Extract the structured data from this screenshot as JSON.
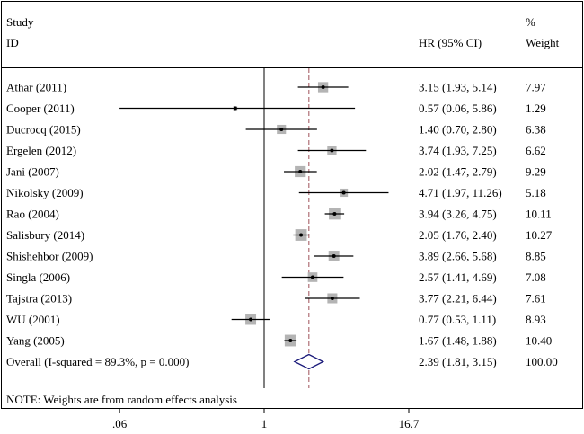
{
  "chart_data": {
    "type": "forest",
    "header": {
      "study_line1": "Study",
      "study_line2": "ID",
      "effect_label": "HR (95% CI)",
      "weight_line1": "%",
      "weight_line2": "Weight"
    },
    "studies": [
      {
        "label": "Athar  (2011)",
        "hr": 3.15,
        "lo": 1.93,
        "hi": 5.14,
        "ci_text": "3.15 (1.93, 5.14)",
        "weight": 7.97,
        "weight_text": "7.97"
      },
      {
        "label": "Cooper  (2011)",
        "hr": 0.57,
        "lo": 0.06,
        "hi": 5.86,
        "ci_text": "0.57 (0.06, 5.86)",
        "weight": 1.29,
        "weight_text": "1.29"
      },
      {
        "label": "Ducrocq  (2015)",
        "hr": 1.4,
        "lo": 0.7,
        "hi": 2.8,
        "ci_text": "1.40 (0.70, 2.80)",
        "weight": 6.38,
        "weight_text": "6.38"
      },
      {
        "label": "Ergelen  (2012)",
        "hr": 3.74,
        "lo": 1.93,
        "hi": 7.25,
        "ci_text": "3.74 (1.93, 7.25)",
        "weight": 6.62,
        "weight_text": "6.62"
      },
      {
        "label": "Jani  (2007)",
        "hr": 2.02,
        "lo": 1.47,
        "hi": 2.79,
        "ci_text": "2.02 (1.47, 2.79)",
        "weight": 9.29,
        "weight_text": "9.29"
      },
      {
        "label": "Nikolsky  (2009)",
        "hr": 4.71,
        "lo": 1.97,
        "hi": 11.26,
        "ci_text": "4.71 (1.97, 11.26)",
        "weight": 5.18,
        "weight_text": "5.18"
      },
      {
        "label": "Rao  (2004)",
        "hr": 3.94,
        "lo": 3.26,
        "hi": 4.75,
        "ci_text": "3.94 (3.26, 4.75)",
        "weight": 10.11,
        "weight_text": "10.11"
      },
      {
        "label": "Salisbury  (2014)",
        "hr": 2.05,
        "lo": 1.76,
        "hi": 2.4,
        "ci_text": "2.05 (1.76, 2.40)",
        "weight": 10.27,
        "weight_text": "10.27"
      },
      {
        "label": "Shishehbor  (2009)",
        "hr": 3.89,
        "lo": 2.66,
        "hi": 5.68,
        "ci_text": "3.89 (2.66, 5.68)",
        "weight": 8.85,
        "weight_text": "8.85"
      },
      {
        "label": "Singla  (2006)",
        "hr": 2.57,
        "lo": 1.41,
        "hi": 4.69,
        "ci_text": "2.57 (1.41, 4.69)",
        "weight": 7.08,
        "weight_text": "7.08"
      },
      {
        "label": "Tajstra  (2013)",
        "hr": 3.77,
        "lo": 2.21,
        "hi": 6.44,
        "ci_text": "3.77 (2.21, 6.44)",
        "weight": 7.61,
        "weight_text": "7.61"
      },
      {
        "label": "WU  (2001)",
        "hr": 0.77,
        "lo": 0.53,
        "hi": 1.11,
        "ci_text": "0.77 (0.53, 1.11)",
        "weight": 8.93,
        "weight_text": "8.93"
      },
      {
        "label": "Yang  (2005)",
        "hr": 1.67,
        "lo": 1.48,
        "hi": 1.88,
        "ci_text": "1.67 (1.48, 1.88)",
        "weight": 10.4,
        "weight_text": "10.40"
      }
    ],
    "overall": {
      "label": "Overall  (I-squared = 89.3%, p = 0.000)",
      "hr": 2.39,
      "lo": 1.81,
      "hi": 3.15,
      "ci_text": "2.39 (1.81, 3.15)",
      "weight_text": "100.00"
    },
    "note": "NOTE: Weights are from random effects analysis",
    "x_scale": "log",
    "x_ticks": [
      {
        "value": 0.06,
        "label": ".06"
      },
      {
        "value": 1,
        "label": "1"
      },
      {
        "value": 16.7,
        "label": "16.7"
      }
    ],
    "colors": {
      "box": "#b4b4b4",
      "diamond": "#1a1a7a",
      "dashed_line": "#a0525a",
      "line": "#000000"
    }
  }
}
